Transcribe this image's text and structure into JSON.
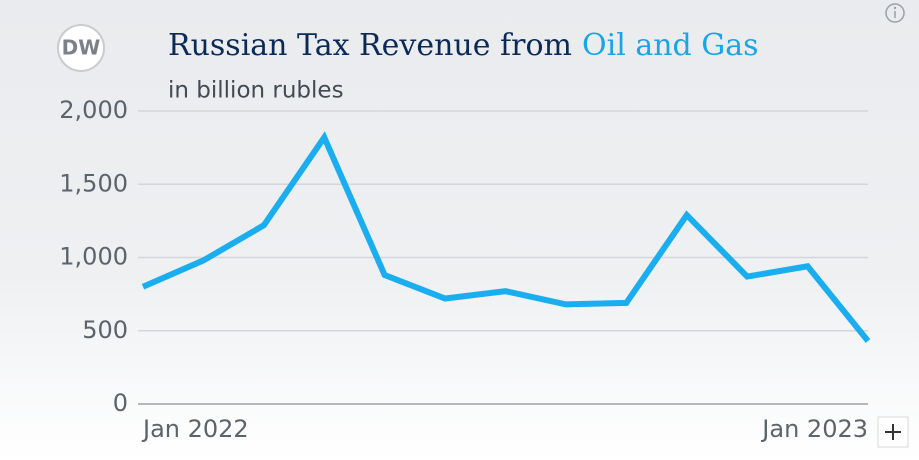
{
  "logo": "DW",
  "chart_data": {
    "type": "line",
    "title": "Russian Tax Revenue from",
    "title_highlight": "Oil and Gas",
    "subtitle": "in billion rubles",
    "categories": [
      "Jan 2022",
      null,
      null,
      null,
      null,
      null,
      null,
      null,
      null,
      null,
      null,
      null,
      "Jan 2023"
    ],
    "series": [
      {
        "name": "Tax revenue",
        "color": "#1aaef0",
        "values": [
          800,
          980,
          1220,
          1820,
          880,
          720,
          770,
          680,
          690,
          1290,
          870,
          940,
          430
        ]
      }
    ],
    "ylim": [
      0,
      2000
    ],
    "yticks": [
      0,
      500,
      {
        "value": 1000,
        "label": "1,000"
      },
      {
        "value": 1500,
        "label": "1,500"
      },
      {
        "value": 2000,
        "label": "2,000"
      }
    ],
    "grid": true
  }
}
